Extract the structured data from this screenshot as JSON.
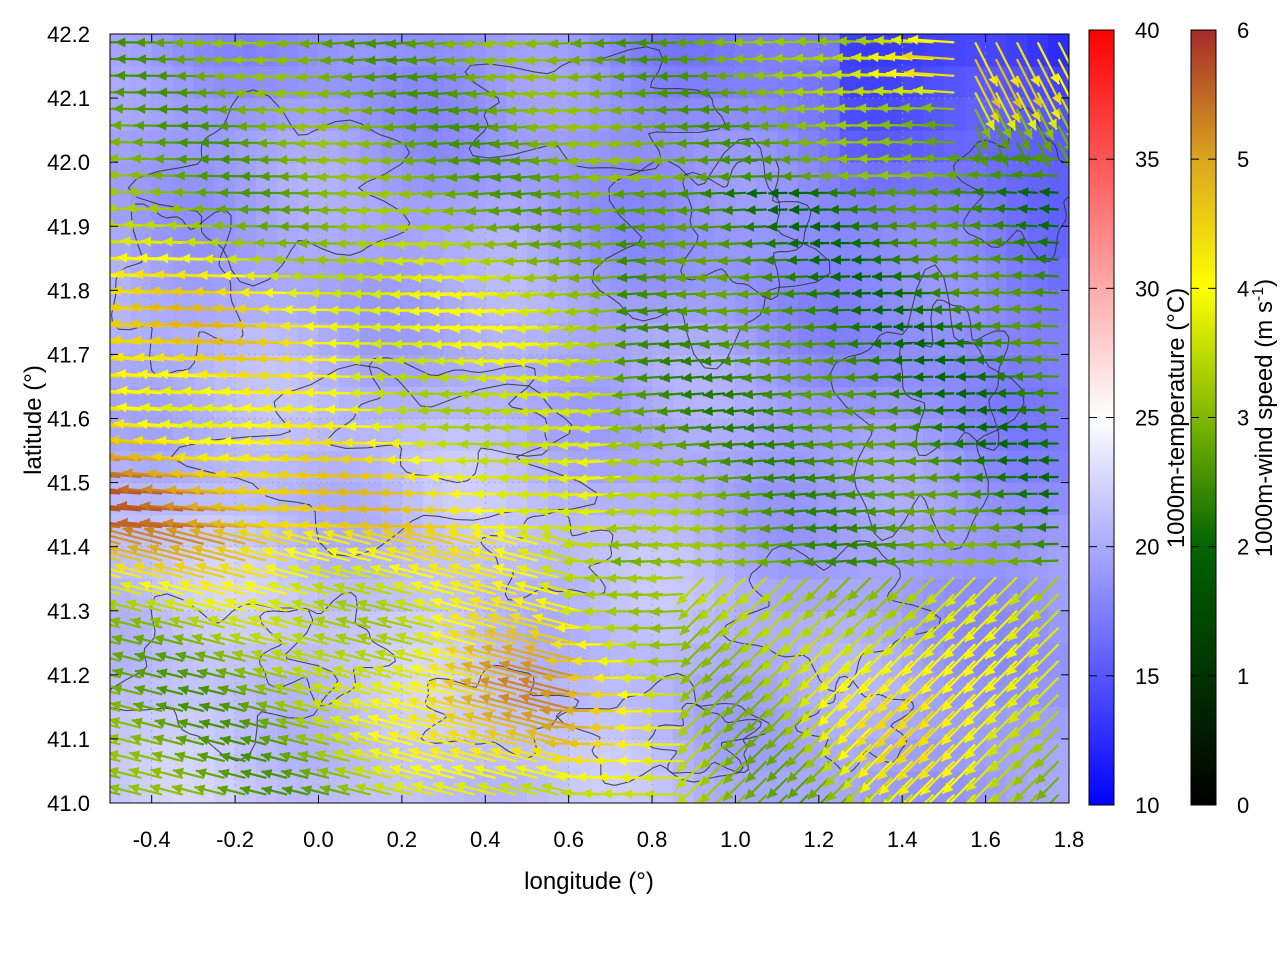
{
  "chart_data": {
    "type": "heatmap",
    "title": "",
    "xlabel": "longitude (°)",
    "ylabel": "latitude (°)",
    "xlim": [
      -0.5,
      1.8
    ],
    "ylim": [
      41.0,
      42.2
    ],
    "x_ticks": [
      "-0.4",
      "-0.2",
      "0.0",
      "0.2",
      "0.4",
      "0.6",
      "0.8",
      "1.0",
      "1.2",
      "1.4",
      "1.6",
      "1.8"
    ],
    "x_tick_values": [
      -0.4,
      -0.2,
      0.0,
      0.2,
      0.4,
      0.6,
      0.8,
      1.0,
      1.2,
      1.4,
      1.6,
      1.8
    ],
    "y_ticks": [
      "41.0",
      "41.1",
      "41.2",
      "41.3",
      "41.4",
      "41.5",
      "41.6",
      "41.7",
      "41.8",
      "41.9",
      "42.0",
      "42.1",
      "42.2"
    ],
    "y_tick_values": [
      41.0,
      41.1,
      41.2,
      41.3,
      41.4,
      41.5,
      41.6,
      41.7,
      41.8,
      41.9,
      42.0,
      42.1,
      42.2
    ],
    "grid": true,
    "background_field": {
      "name": "1000m-temperature",
      "colorbar_label": "1000m-temperature (°C)",
      "range": [
        10,
        40
      ],
      "ticks": [
        "10",
        "15",
        "20",
        "25",
        "30",
        "35",
        "40"
      ],
      "tick_values": [
        10,
        15,
        20,
        25,
        30,
        35,
        40
      ],
      "colors": [
        "#0000ff",
        "#ffffff",
        "#ff0000"
      ]
    },
    "vector_field": {
      "name": "1000m-wind speed",
      "colorbar_label": "1000m-wind speed (m s⁻¹)",
      "colorbar_label_main": "1000m-wind speed (m s",
      "colorbar_label_sup": "-1",
      "colorbar_label_end": ")",
      "range": [
        0,
        6
      ],
      "ticks": [
        "0",
        "1",
        "2",
        "3",
        "4",
        "5",
        "6"
      ],
      "tick_values": [
        0,
        1,
        2,
        3,
        4,
        5,
        6
      ],
      "colors": [
        "#000000",
        "#006400",
        "#7fb800",
        "#ffff00",
        "#daa520",
        "#a52a2a"
      ],
      "direction": "predominantly easterly (arrows pointing west)"
    },
    "contours": "terrain height contour lines (black)"
  }
}
